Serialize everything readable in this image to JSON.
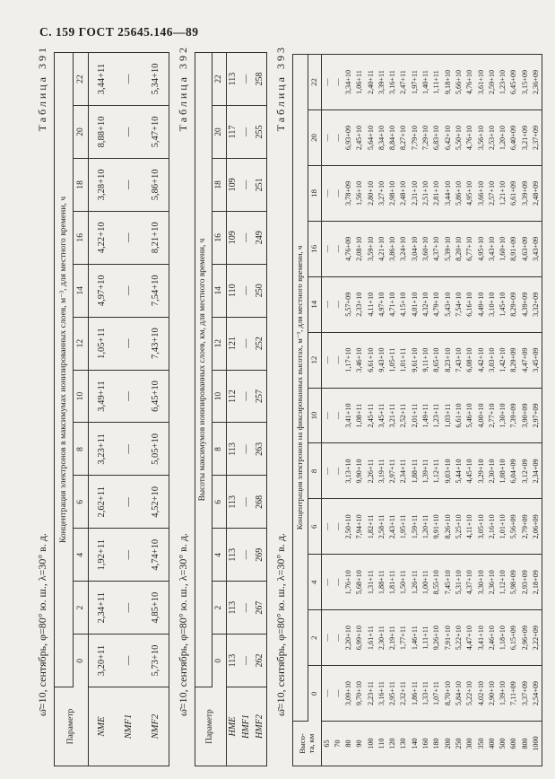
{
  "page_header": "С. 159 ГОСТ 25645.146—89",
  "tables": [
    {
      "caption": "Таблица 391",
      "condition": "ω̄=10, сентябрь, φ=80° ю. ш., λ=30° в. д.",
      "span_header": "Концентрация электронов в максимумах ионизированных слоев, м⁻³, для местного времени, ч",
      "row_label_header": "Параметр",
      "hours": [
        "0",
        "2",
        "4",
        "6",
        "8",
        "10",
        "12",
        "14",
        "16",
        "18",
        "20",
        "22"
      ],
      "rows": [
        {
          "label": "NME",
          "values": [
            "3,20+11",
            "2,34+11",
            "1,92+11",
            "2,62+11",
            "3,23+11",
            "3,49+11",
            "1,05+11",
            "4,97+10",
            "4,22+10",
            "3,28+10",
            "8,88+10",
            "3,44+11"
          ]
        },
        {
          "label": "NMF1",
          "values": [
            "—",
            "—",
            "—",
            "—",
            "—",
            "—",
            "—",
            "—",
            "—",
            "—",
            "—",
            "—"
          ]
        },
        {
          "label": "NMF2",
          "values": [
            "5,73+10",
            "4,85+10",
            "4,74+10",
            "4,52+10",
            "5,05+10",
            "6,45+10",
            "7,43+10",
            "7,54+10",
            "8,21+10",
            "5,86+10",
            "5,47+10",
            "5,34+10"
          ]
        }
      ]
    },
    {
      "caption": "Таблица 392",
      "condition": "ω̄=10, сентябрь, φ=80° ю. ш., λ=30° в. д.",
      "span_header": "Высоты максимумов ионизированных слоев, км, для местного времени, ч",
      "row_label_header": "Параметр",
      "hours": [
        "0",
        "2",
        "4",
        "6",
        "8",
        "10",
        "12",
        "14",
        "16",
        "18",
        "20",
        "22"
      ],
      "rows": [
        {
          "label": "HME",
          "values": [
            "113",
            "113",
            "113",
            "113",
            "113",
            "112",
            "121",
            "110",
            "109",
            "109",
            "117",
            "113"
          ]
        },
        {
          "label": "HMF1",
          "values": [
            "—",
            "—",
            "—",
            "—",
            "—",
            "—",
            "—",
            "—",
            "—",
            "—",
            "—",
            "—"
          ]
        },
        {
          "label": "HMF2",
          "values": [
            "262",
            "267",
            "269",
            "268",
            "263",
            "257",
            "252",
            "250",
            "249",
            "251",
            "255",
            "258"
          ]
        }
      ]
    },
    {
      "caption": "Таблица 393",
      "condition": "ω̄=10, сентябрь, φ=80° ю. ш., λ=30° в. д.",
      "span_header": "Концентрация электронов на фиксированных высотах, м⁻³, для местного времени, ч",
      "row_label_header": "Высо-\nта, км",
      "hours": [
        "0",
        "2",
        "4",
        "6",
        "8",
        "10",
        "12",
        "14",
        "16",
        "18",
        "20",
        "22"
      ],
      "rows": [
        {
          "label": "65",
          "values": [
            "—",
            "—",
            "—",
            "—",
            "—",
            "—",
            "—",
            "—",
            "—",
            "—",
            "—",
            "—"
          ]
        },
        {
          "label": "70",
          "values": [
            "—",
            "—",
            "—",
            "—",
            "—",
            "—",
            "—",
            "—",
            "—",
            "—",
            "—",
            "—"
          ]
        },
        {
          "label": "80",
          "values": [
            "3,09+10",
            "2,20+10",
            "1,76+10",
            "2,50+10",
            "3,13+10",
            "3,41+10",
            "1,17+10",
            "5,57+09",
            "4,76+09",
            "3,78+09",
            "6,93+09",
            "3,34+10"
          ]
        },
        {
          "label": "90",
          "values": [
            "9,70+10",
            "6,99+10",
            "5,68+10",
            "7,94+10",
            "9,90+10",
            "1,08+11",
            "3,46+10",
            "2,33+10",
            "2,08+10",
            "1,56+10",
            "2,45+10",
            "1,06+11"
          ]
        },
        {
          "label": "100",
          "values": [
            "2,23+11",
            "1,61+11",
            "1,31+11",
            "1,82+11",
            "2,26+11",
            "2,45+11",
            "6,61+10",
            "4,11+10",
            "3,59+10",
            "2,80+10",
            "5,64+10",
            "2,40+11"
          ]
        },
        {
          "label": "110",
          "values": [
            "3,16+11",
            "2,30+11",
            "1,88+11",
            "2,58+11",
            "3,19+11",
            "3,45+11",
            "9,43+10",
            "4,97+10",
            "4,21+10",
            "3,27+10",
            "8,34+10",
            "3,39+11"
          ]
        },
        {
          "label": "120",
          "values": [
            "2,95+11",
            "2,19+11",
            "1,81+11",
            "2,43+11",
            "2,97+11",
            "3,21+11",
            "1,05+11",
            "4,71+10",
            "3,86+10",
            "2,98+10",
            "8,84+10",
            "3,16+11"
          ]
        },
        {
          "label": "130",
          "values": [
            "2,32+11",
            "1,77+11",
            "1,50+11",
            "1,95+11",
            "2,34+11",
            "2,52+11",
            "1,01+11",
            "4,15+10",
            "3,24+10",
            "2,48+10",
            "8,27+10",
            "2,47+11"
          ]
        },
        {
          "label": "140",
          "values": [
            "1,86+11",
            "1,46+11",
            "1,26+11",
            "1,59+11",
            "1,88+11",
            "2,01+11",
            "9,61+10",
            "4,01+10",
            "3,04+10",
            "2,31+10",
            "7,79+10",
            "1,97+11"
          ]
        },
        {
          "label": "160",
          "values": [
            "1,33+11",
            "1,11+11",
            "1,00+11",
            "1,20+11",
            "1,39+11",
            "1,49+11",
            "9,11+10",
            "4,32+10",
            "3,60+10",
            "2,51+10",
            "7,29+10",
            "1,40+11"
          ]
        },
        {
          "label": "180",
          "values": [
            "1,07+11",
            "9,26+10",
            "8,55+10",
            "9,91+10",
            "1,12+11",
            "1,23+11",
            "8,65+10",
            "4,79+10",
            "4,37+10",
            "2,81+10",
            "6,83+10",
            "1,11+11"
          ]
        },
        {
          "label": "200",
          "values": [
            "8,70+10",
            "7,91+10",
            "7,45+10",
            "8,26+10",
            "9,03+10",
            "1,03+11",
            "8,23+10",
            "5,43+10",
            "5,39+10",
            "3,44+10",
            "6,42+10",
            "9,18+10"
          ]
        },
        {
          "label": "250",
          "values": [
            "5,84+10",
            "5,22+10",
            "5,31+10",
            "5,25+10",
            "5,44+10",
            "6,61+10",
            "7,43+10",
            "7,54+10",
            "8,20+10",
            "5,86+10",
            "5,50+10",
            "5,66+10"
          ]
        },
        {
          "label": "300",
          "values": [
            "5,22+10",
            "4,47+10",
            "4,37+10",
            "4,11+10",
            "4,45+10",
            "5,46+10",
            "6,08+10",
            "6,16+10",
            "6,77+10",
            "4,95+10",
            "4,76+10",
            "4,76+10"
          ]
        },
        {
          "label": "350",
          "values": [
            "4,02+10",
            "3,41+10",
            "3,30+10",
            "3,05+10",
            "3,29+10",
            "4,00+10",
            "4,42+10",
            "4,49+10",
            "4,95+10",
            "3,66+10",
            "3,56+10",
            "3,61+10"
          ]
        },
        {
          "label": "400",
          "values": [
            "2,90+10",
            "2,46+10",
            "2,36+10",
            "2,16+10",
            "2,30+10",
            "2,77+10",
            "3,03+10",
            "3,10+10",
            "3,43+10",
            "2,57+10",
            "2,53+10",
            "2,59+10"
          ]
        },
        {
          "label": "500",
          "values": [
            "1,39+10",
            "1,18+10",
            "1,12+10",
            "1,01+10",
            "1,08+10",
            "1,30+10",
            "1,42+10",
            "1,45+10",
            "1,60+10",
            "1,21+10",
            "1,20+10",
            "1,23+10"
          ]
        },
        {
          "label": "600",
          "values": [
            "7,11+09",
            "6,15+09",
            "5,98+09",
            "5,56+09",
            "6,04+09",
            "7,39+09",
            "8,29+09",
            "8,29+09",
            "8,91+09",
            "6,61+09",
            "6,40+09",
            "6,45+09"
          ]
        },
        {
          "label": "800",
          "values": [
            "3,37+09",
            "2,96+09",
            "2,93+09",
            "2,79+09",
            "3,12+09",
            "3,90+09",
            "4,47+09",
            "4,39+09",
            "4,63+09",
            "3,39+09",
            "3,21+09",
            "3,15+09"
          ]
        },
        {
          "label": "1000",
          "values": [
            "2,54+09",
            "2,22+09",
            "2,18+09",
            "2,06+09",
            "2,34+09",
            "2,97+09",
            "3,45+09",
            "3,32+09",
            "3,43+09",
            "2,48+09",
            "2,37+09",
            "2,36+09"
          ]
        }
      ]
    }
  ]
}
